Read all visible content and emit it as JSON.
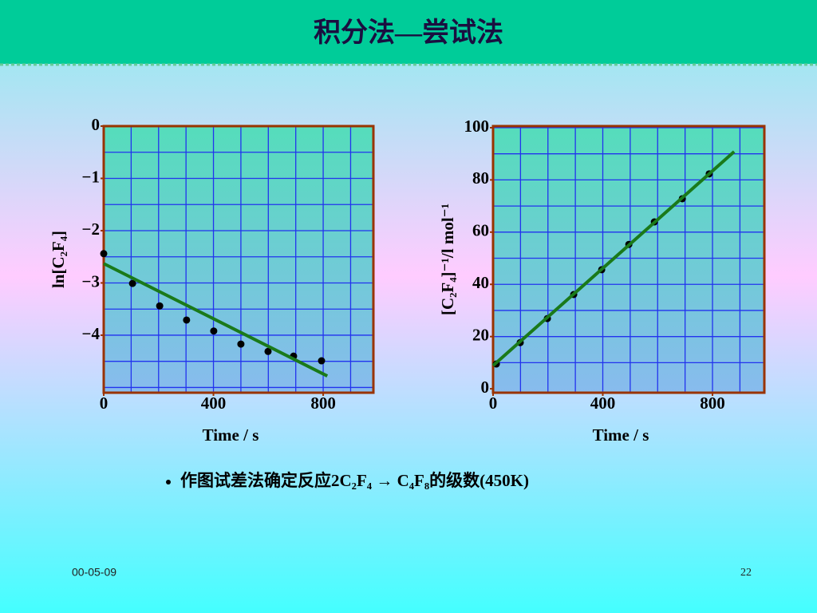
{
  "header": {
    "title": "积分法—尝试法"
  },
  "chart_data": [
    {
      "type": "scatter",
      "xlabel": "Time / s",
      "ylabel": "ln[C₂F₄]",
      "xlim": [
        0,
        983
      ],
      "ylim": [
        -5.1,
        0
      ],
      "xticks": [
        0,
        400,
        800
      ],
      "yticks": [
        0,
        {
          "value": -1,
          "label": "−1"
        },
        {
          "value": -2,
          "label": "−2"
        },
        {
          "value": -3,
          "label": "−3"
        },
        {
          "value": -4,
          "label": "−4"
        }
      ],
      "x_gridlines": [
        100,
        200,
        300,
        400,
        500,
        600,
        700,
        800,
        900
      ],
      "y_gridlines": [
        -0.5,
        -1,
        -1.5,
        -2,
        -2.5,
        -3,
        -3.5,
        -4,
        -4.5,
        -5
      ],
      "grid_color": "#2233ee",
      "plot_color": "#66cccc",
      "frame_color": "#993300",
      "series": [
        {
          "type": "scatter",
          "color": "#000000",
          "x": [
            0,
            105,
            204,
            302,
            401,
            500,
            599,
            692,
            794
          ],
          "values": [
            -2.44,
            -3.01,
            -3.44,
            -3.71,
            -3.92,
            -4.17,
            -4.31,
            -4.4,
            -4.49
          ]
        },
        {
          "type": "line",
          "color": "#1a7a1a",
          "x": [
            0,
            815
          ],
          "values": [
            -2.63,
            -4.78
          ]
        }
      ]
    },
    {
      "type": "scatter",
      "xlabel": "Time / s",
      "ylabel": "[C₂F₄]⁻¹/l mol⁻¹",
      "xlim": [
        0,
        989
      ],
      "ylim": [
        -1.5,
        100.6
      ],
      "xticks": [
        0,
        400,
        800
      ],
      "yticks": [
        0,
        20,
        40,
        60,
        80,
        100
      ],
      "x_gridlines": [
        100,
        200,
        300,
        400,
        500,
        600,
        700,
        800,
        900
      ],
      "y_gridlines": [
        10,
        20,
        30,
        40,
        50,
        60,
        70,
        80,
        90,
        100
      ],
      "grid_color": "#2233ee",
      "plot_color": "#66cccc",
      "frame_color": "#993300",
      "series": [
        {
          "type": "scatter",
          "color": "#000000",
          "x": [
            12,
            99,
            198,
            294,
            396,
            495,
            588,
            690,
            788
          ],
          "values": [
            9.5,
            17.7,
            26.9,
            36.1,
            45.6,
            55.3,
            63.9,
            72.8,
            82.3
          ]
        },
        {
          "type": "line",
          "color": "#1a7a1a",
          "x": [
            0,
            879
          ],
          "values": [
            8.9,
            90.8
          ]
        }
      ]
    }
  ],
  "caption": "作图试差法确定反应2C₂F₄ → C₄F₈的级数(450K)",
  "footer": {
    "date": "00-05-09",
    "page": "22"
  }
}
